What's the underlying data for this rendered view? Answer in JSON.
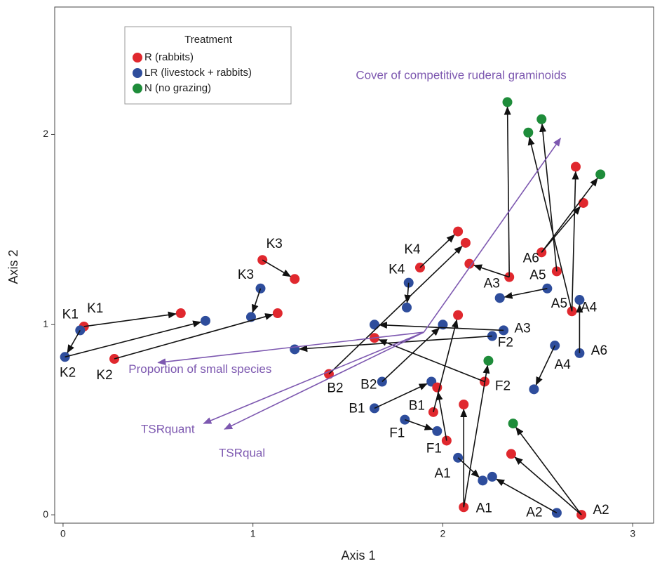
{
  "chart_data": {
    "type": "scatter",
    "x_label": "Axis 1",
    "y_label": "Axis 2",
    "xlim": [
      -0.044,
      3.11
    ],
    "ylim": [
      -0.044,
      2.67
    ],
    "xticks": [
      0,
      1,
      2,
      3
    ],
    "yticks": [
      0,
      1,
      2
    ],
    "legend_title": "Treatment",
    "series": [
      {
        "name": "R (rabbits)",
        "color": "#e0282e"
      },
      {
        "name": "LR (livestock + rabbits)",
        "color": "#2e4d9c"
      },
      {
        "name": "N (no grazing)",
        "color": "#1e8c3a"
      }
    ],
    "points": {
      "x": [
        0.11,
        0.09,
        0.01,
        0.27,
        0.62,
        0.75,
        1.05,
        1.04,
        0.99,
        1.22,
        1.13,
        1.88,
        1.82,
        1.81,
        2.08,
        2.12,
        1.4,
        1.64,
        1.64,
        1.68,
        2.0,
        1.94,
        1.97,
        1.64,
        1.95,
        2.08,
        2.32,
        2.26,
        1.22,
        2.22,
        1.8,
        1.97,
        2.02,
        2.24,
        2.11,
        2.11,
        2.08,
        2.21,
        2.26,
        2.6,
        2.73,
        2.36,
        2.37,
        2.48,
        2.59,
        2.72,
        2.68,
        2.72,
        2.55,
        2.3,
        2.35,
        2.14,
        2.34,
        2.6,
        2.52,
        2.74,
        2.83,
        2.7,
        2.52,
        2.45
      ],
      "y": [
        0.99,
        0.97,
        0.83,
        0.82,
        1.06,
        1.02,
        1.34,
        1.19,
        1.04,
        1.24,
        1.06,
        1.3,
        1.22,
        1.09,
        1.49,
        1.43,
        0.74,
        1.0,
        0.93,
        0.7,
        1.0,
        0.7,
        0.67,
        0.56,
        0.54,
        1.05,
        0.97,
        0.94,
        0.87,
        0.7,
        0.5,
        0.44,
        0.39,
        0.81,
        0.58,
        0.04,
        0.3,
        0.18,
        0.2,
        0.01,
        0.0,
        0.32,
        0.48,
        0.66,
        0.89,
        0.85,
        1.07,
        1.13,
        1.19,
        1.14,
        1.25,
        1.32,
        2.17,
        1.28,
        1.38,
        1.64,
        1.79,
        1.83,
        2.08,
        2.01
      ],
      "group": [
        0,
        1,
        1,
        0,
        0,
        1,
        0,
        1,
        1,
        0,
        0,
        0,
        1,
        1,
        0,
        0,
        0,
        1,
        0,
        1,
        1,
        1,
        0,
        1,
        0,
        0,
        1,
        1,
        1,
        0,
        1,
        1,
        0,
        2,
        0,
        0,
        1,
        1,
        1,
        1,
        0,
        0,
        2,
        1,
        1,
        1,
        0,
        1,
        1,
        1,
        0,
        0,
        2,
        0,
        0,
        0,
        2,
        0,
        2,
        2
      ],
      "labels": [
        "K1",
        "K1",
        "K2",
        "K2",
        null,
        null,
        "K3",
        "K3",
        null,
        null,
        null,
        "K4",
        "K4",
        null,
        null,
        null,
        "B2",
        null,
        null,
        "B2",
        null,
        null,
        "B1",
        "B1",
        null,
        null,
        "A3",
        "F2",
        null,
        "F2",
        "F1",
        null,
        "F1",
        null,
        null,
        "A1",
        "A1",
        null,
        null,
        "A2",
        "A2",
        null,
        null,
        null,
        "A4",
        "A6",
        "A4",
        "A5",
        null,
        null,
        "A3",
        null,
        null,
        "A5",
        "A6",
        null,
        null,
        null,
        null,
        null
      ]
    },
    "arrows": {
      "from": [
        0,
        1,
        2,
        3,
        7,
        6,
        11,
        12,
        16,
        26,
        27,
        29,
        19,
        23,
        24,
        30,
        32,
        36,
        35,
        35,
        39,
        40,
        40,
        44,
        48,
        50,
        50,
        46,
        46,
        45,
        53,
        54,
        54
      ],
      "to": [
        4,
        2,
        5,
        10,
        8,
        9,
        14,
        13,
        15,
        17,
        28,
        18,
        20,
        21,
        25,
        31,
        22,
        37,
        34,
        33,
        38,
        41,
        42,
        43,
        49,
        51,
        52,
        57,
        59,
        47,
        58,
        56,
        55
      ]
    },
    "vectors": {
      "origin": [
        1.9,
        0.96
      ],
      "x": [
        2.62,
        0.5,
        0.74,
        0.85
      ],
      "y": [
        1.98,
        0.8,
        0.48,
        0.45
      ],
      "labels": [
        "Cover of competitive ruderal graminoids",
        "Proportion of small species",
        "TSRquant",
        "TSRqual"
      ],
      "color": "#7d58b0"
    }
  }
}
